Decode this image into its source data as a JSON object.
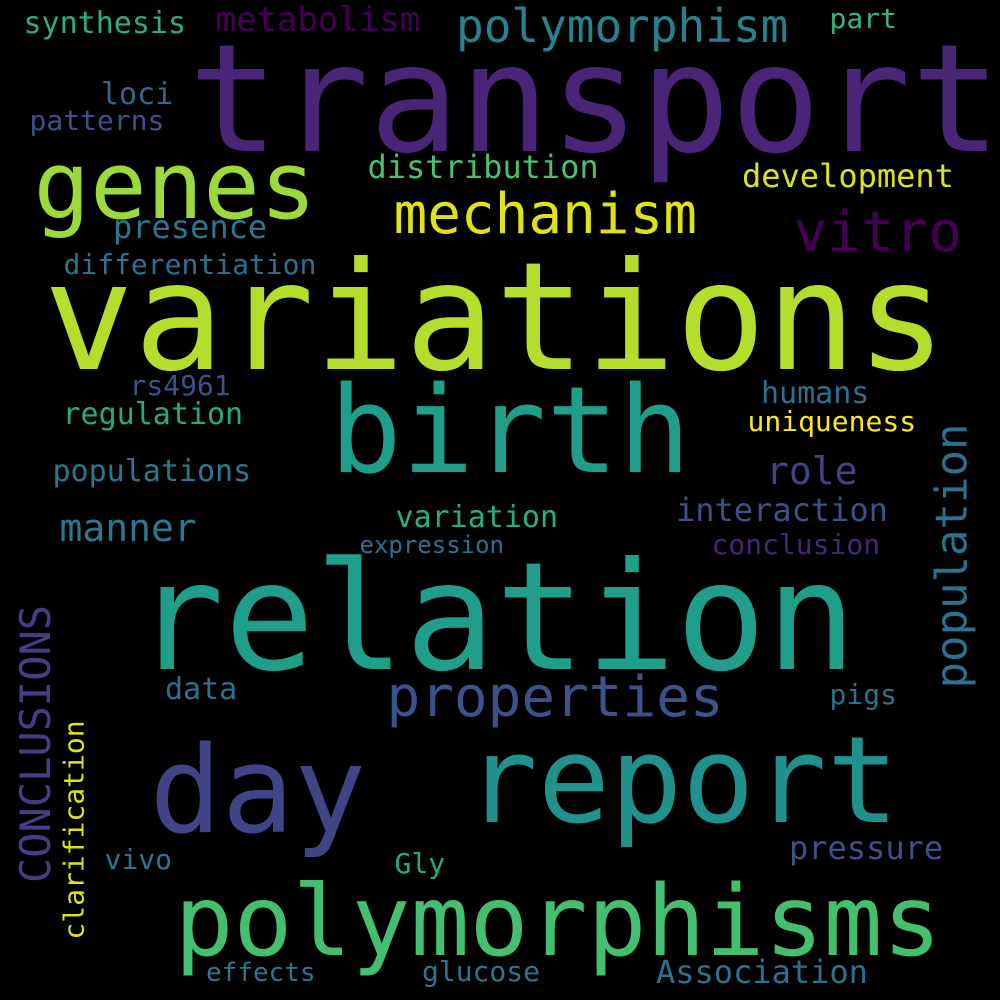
{
  "background_color": "#000000",
  "words": [
    {
      "text": "transport",
      "color": "#482576",
      "vertical": false
    },
    {
      "text": "variations",
      "color": "#b4dd2c",
      "vertical": false
    },
    {
      "text": "relation",
      "color": "#1f9e89",
      "vertical": false
    },
    {
      "text": "birth",
      "color": "#1f9e89",
      "vertical": false
    },
    {
      "text": "day",
      "color": "#414487",
      "vertical": false
    },
    {
      "text": "report",
      "color": "#21918c",
      "vertical": false
    },
    {
      "text": "polymorphisms",
      "color": "#44bf70",
      "vertical": false
    },
    {
      "text": "genes",
      "color": "#9dd93b",
      "vertical": false
    },
    {
      "text": "mechanism",
      "color": "#dde318",
      "vertical": false
    },
    {
      "text": "properties",
      "color": "#3b528b",
      "vertical": false
    },
    {
      "text": "polymorphism",
      "color": "#26828e",
      "vertical": false
    },
    {
      "text": "vitro",
      "color": "#440154",
      "vertical": false
    },
    {
      "text": "population",
      "color": "#2c728e",
      "vertical": true
    },
    {
      "text": "CONCLUSIONS",
      "color": "#433e85",
      "vertical": true
    },
    {
      "text": "metabolism",
      "color": "#440154",
      "vertical": false
    },
    {
      "text": "manner",
      "color": "#2a788e",
      "vertical": false
    },
    {
      "text": "role",
      "color": "#414487",
      "vertical": false
    },
    {
      "text": "development",
      "color": "#dde318",
      "vertical": false
    },
    {
      "text": "distribution",
      "color": "#4ac16d",
      "vertical": false
    },
    {
      "text": "presence",
      "color": "#2a788e",
      "vertical": false
    },
    {
      "text": "synthesis",
      "color": "#29af7f",
      "vertical": false
    },
    {
      "text": "interaction",
      "color": "#3b528b",
      "vertical": false
    },
    {
      "text": "differentiation",
      "color": "#2c728e",
      "vertical": false
    },
    {
      "text": "regulation",
      "color": "#25ab82",
      "vertical": false
    },
    {
      "text": "populations",
      "color": "#2a788e",
      "vertical": false
    },
    {
      "text": "variation",
      "color": "#29af7f",
      "vertical": false
    },
    {
      "text": "conclusion",
      "color": "#482677",
      "vertical": false
    },
    {
      "text": "pressure",
      "color": "#3b528b",
      "vertical": false
    },
    {
      "text": "humans",
      "color": "#2c728e",
      "vertical": false
    },
    {
      "text": "uniqueness",
      "color": "#fde725",
      "vertical": false
    },
    {
      "text": "clarification",
      "color": "#dde318",
      "vertical": true
    },
    {
      "text": "Association",
      "color": "#2c728e",
      "vertical": false
    },
    {
      "text": "loci",
      "color": "#31688e",
      "vertical": false
    },
    {
      "text": "patterns",
      "color": "#3b528b",
      "vertical": false
    },
    {
      "text": "part",
      "color": "#35b779",
      "vertical": false
    },
    {
      "text": "rs4961",
      "color": "#3b528b",
      "vertical": false
    },
    {
      "text": "data",
      "color": "#2c728e",
      "vertical": false
    },
    {
      "text": "pigs",
      "color": "#2c728e",
      "vertical": false
    },
    {
      "text": "vivo",
      "color": "#2a788e",
      "vertical": false
    },
    {
      "text": "Gly",
      "color": "#25ab82",
      "vertical": false
    },
    {
      "text": "expression",
      "color": "#2c728e",
      "vertical": false
    },
    {
      "text": "effects",
      "color": "#2a788e",
      "vertical": false
    },
    {
      "text": "glucose",
      "color": "#2a788e",
      "vertical": false
    }
  ]
}
